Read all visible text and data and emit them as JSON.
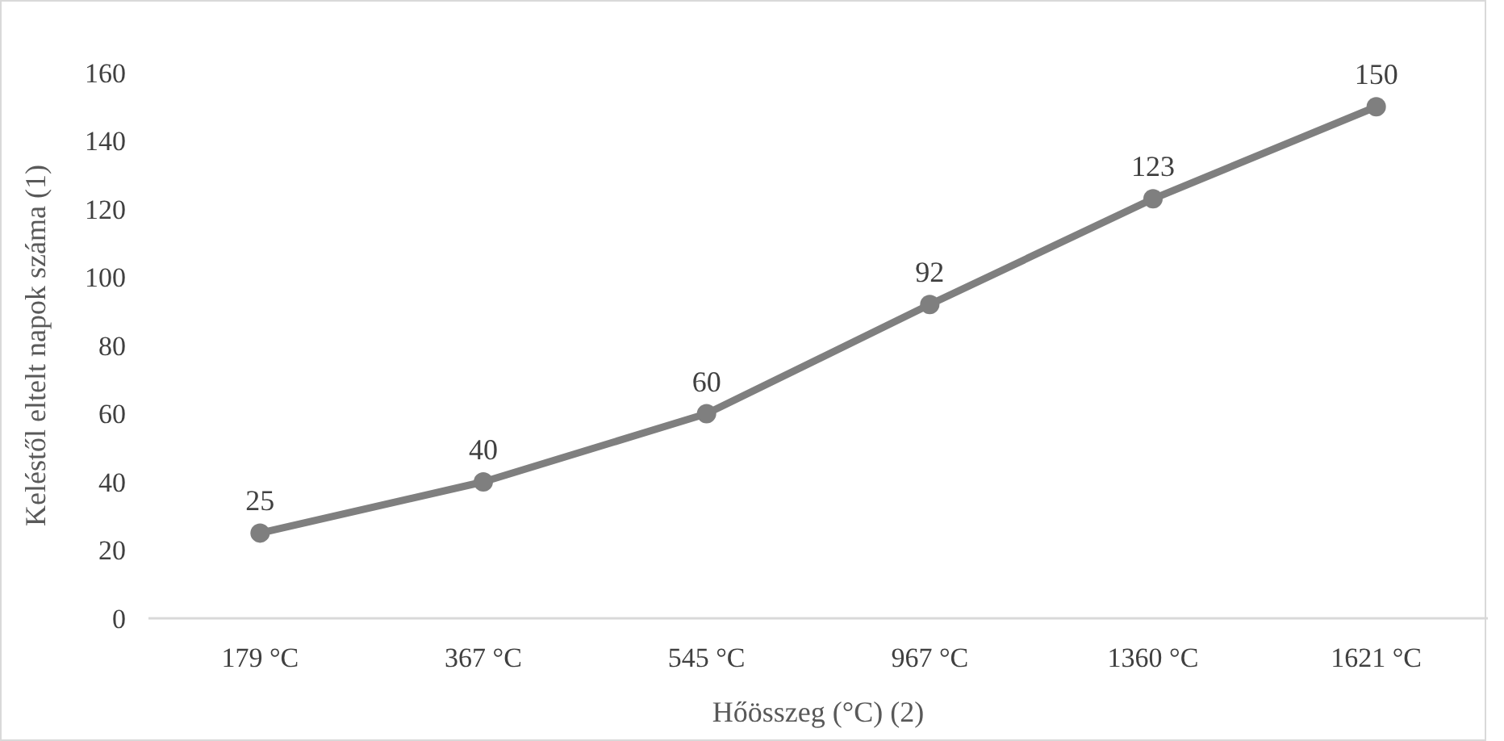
{
  "chart_data": {
    "type": "line",
    "xlabel": "Hőösszeg (°C) (2)",
    "ylabel": "Keléstől eltelt napok száma (1)",
    "categories": [
      "179 °C",
      "367 °C",
      "545 °C",
      "967 °C",
      "1360 °C",
      "1621 °C"
    ],
    "series": [
      {
        "color": "#7f7f7f",
        "values": [
          25,
          40,
          60,
          92,
          123,
          150
        ]
      }
    ],
    "ylim": [
      0,
      160
    ],
    "yticks": [
      0,
      20,
      40,
      60,
      80,
      100,
      120,
      140,
      160
    ],
    "grid": false,
    "marker": "circle",
    "line_style": "solid",
    "data_labels": true
  }
}
